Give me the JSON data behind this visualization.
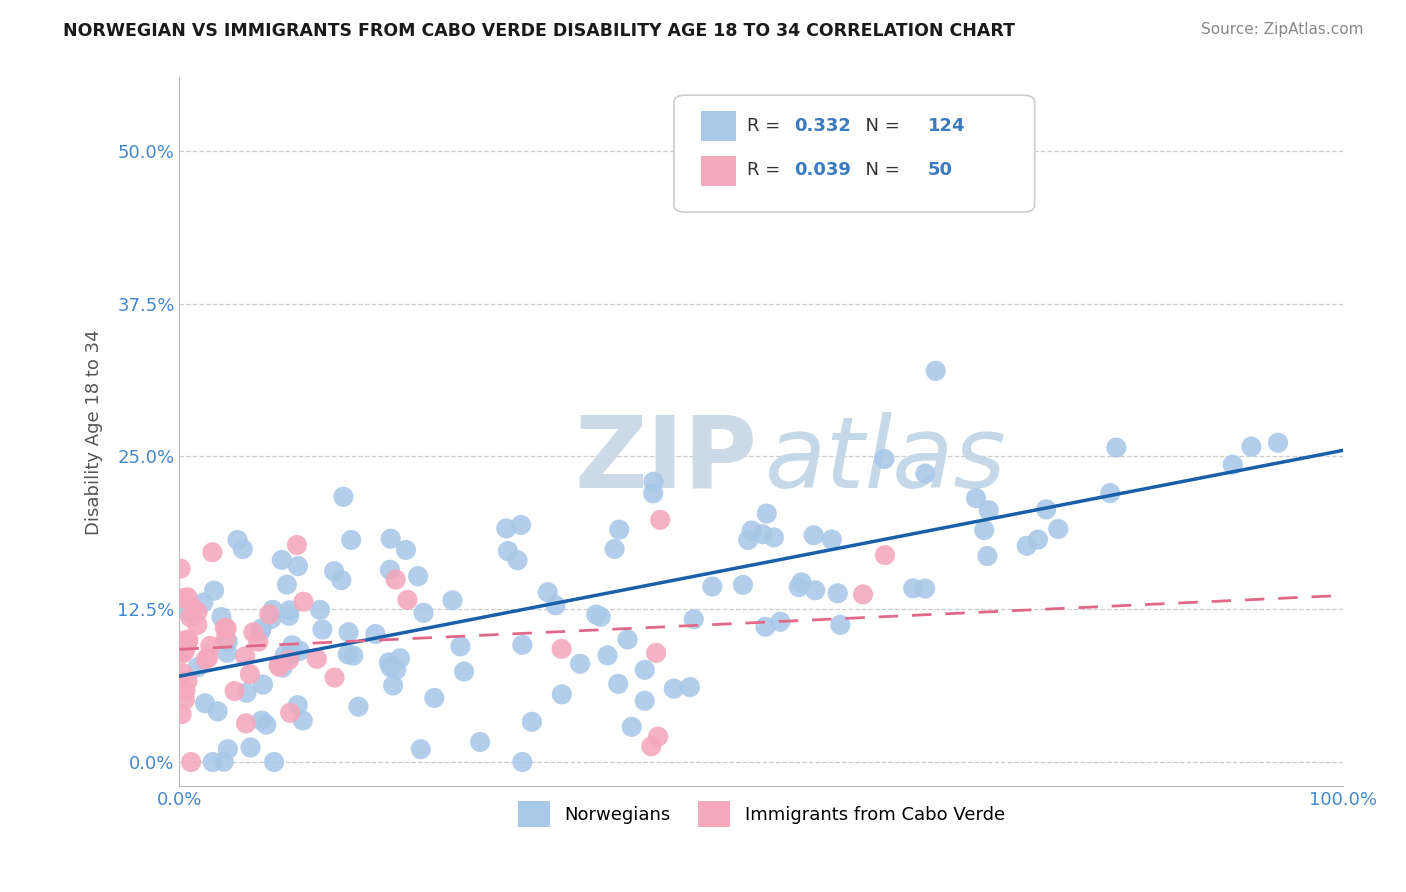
{
  "title": "NORWEGIAN VS IMMIGRANTS FROM CABO VERDE DISABILITY AGE 18 TO 34 CORRELATION CHART",
  "source": "Source: ZipAtlas.com",
  "ylabel": "Disability Age 18 to 34",
  "legend_labels": [
    "Norwegians",
    "Immigrants from Cabo Verde"
  ],
  "norwegian_R": 0.332,
  "norwegian_N": 124,
  "caboverde_R": 0.039,
  "caboverde_N": 50,
  "xlim": [
    0.0,
    1.0
  ],
  "ylim": [
    -0.02,
    0.56
  ],
  "yticks": [
    0.0,
    0.125,
    0.25,
    0.375,
    0.5
  ],
  "xticks": [
    0.0,
    1.0
  ],
  "norwegian_color": "#a8c8e8",
  "caboverde_color": "#f4a8bc",
  "norwegian_line_color": "#1a5faa",
  "caboverde_line_color": "#e06888",
  "background_color": "#ffffff",
  "grid_color": "#cccccc",
  "title_color": "#1a1a1a",
  "source_color": "#888888",
  "tick_color": "#4488cc",
  "ylabel_color": "#555555",
  "legend_text_color": "#333333",
  "legend_value_color": "#3a7bbf"
}
